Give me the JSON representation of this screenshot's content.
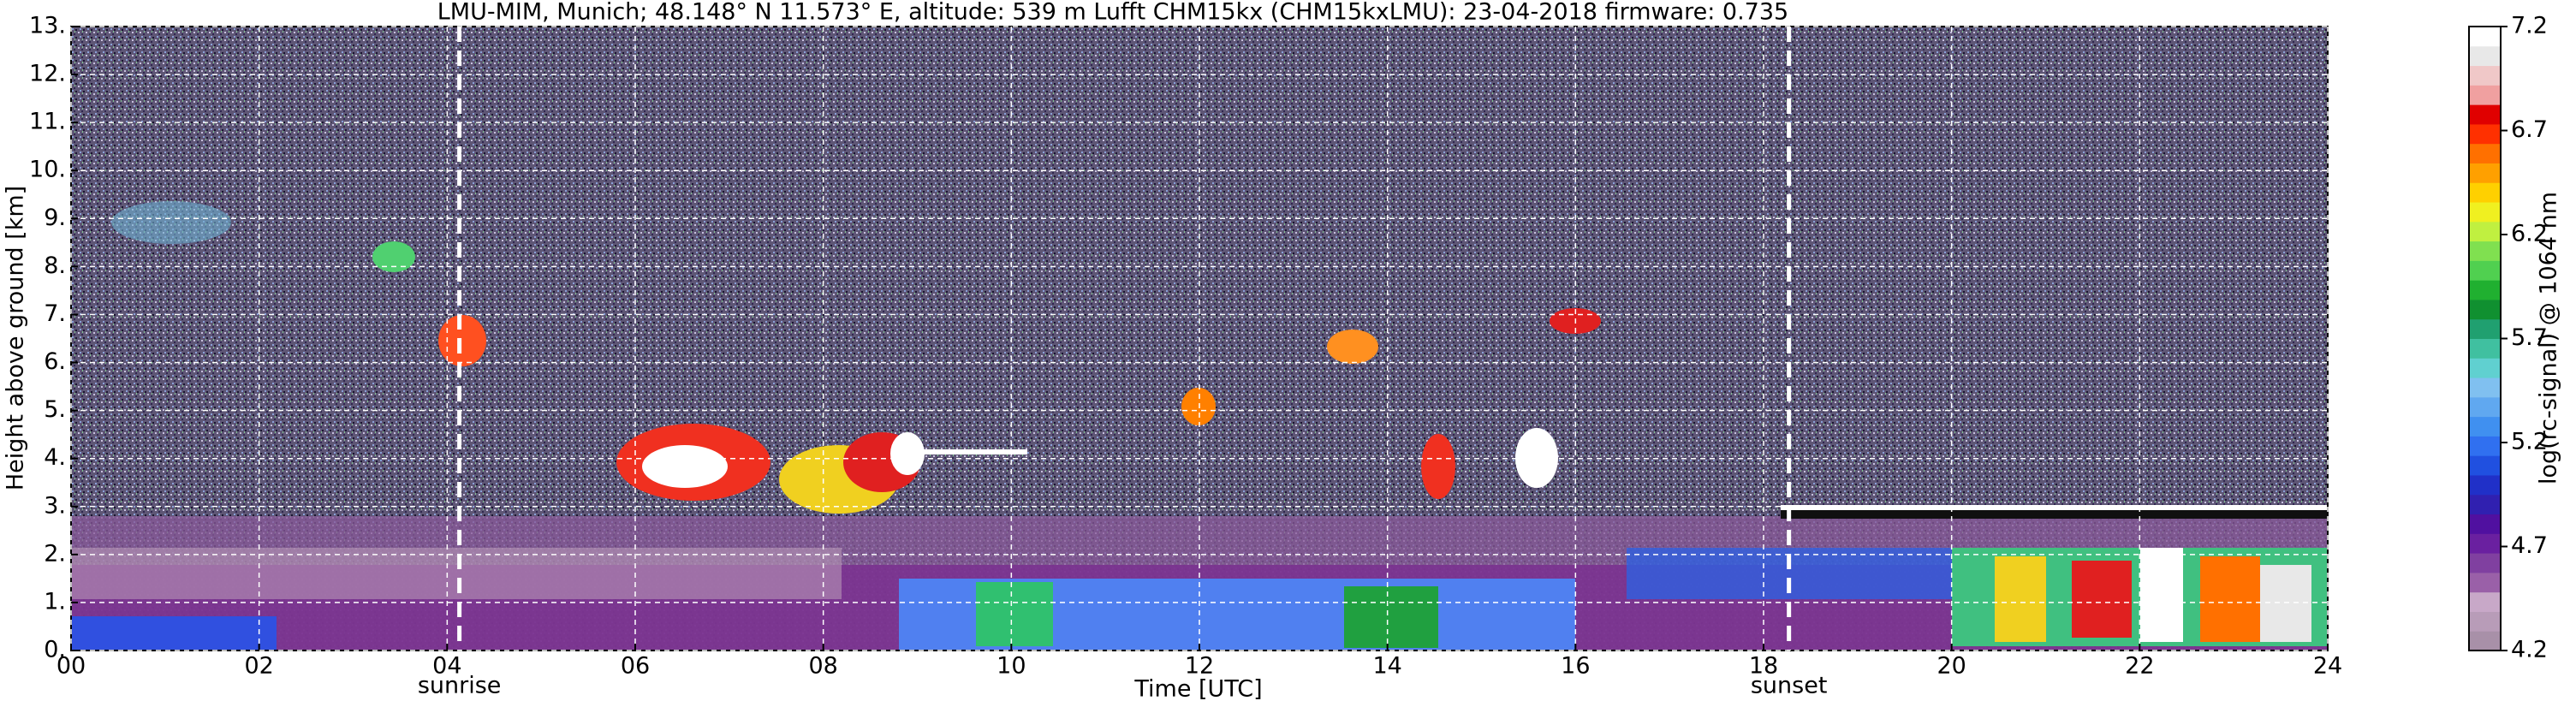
{
  "chart_data": {
    "type": "heatmap",
    "title": "LMU-MIM, Munich; 48.148° N 11.573° E, altitude: 539 m    Lufft CHM15kx (CHM15kxLMU): 23-04-2018    firmware: 0.735",
    "xlabel": "Time [UTC]",
    "ylabel": "Height above ground [km]",
    "xlim": [
      0,
      24
    ],
    "xticks": [
      {
        "value": 0,
        "label": "00"
      },
      {
        "value": 2,
        "label": "02"
      },
      {
        "value": 4,
        "label": "04"
      },
      {
        "value": 6,
        "label": "06"
      },
      {
        "value": 8,
        "label": "08"
      },
      10,
      12,
      14,
      16,
      18,
      20,
      22,
      24
    ],
    "ylim": [
      0,
      13
    ],
    "yticks": [
      {
        "value": 0,
        "label": "0."
      },
      {
        "value": 1,
        "label": "1."
      },
      {
        "value": 2,
        "label": "2."
      },
      {
        "value": 3,
        "label": "3."
      },
      {
        "value": 4,
        "label": "4."
      },
      {
        "value": 5,
        "label": "5."
      },
      {
        "value": 6,
        "label": "6."
      },
      {
        "value": 7,
        "label": "7."
      },
      {
        "value": 8,
        "label": "8."
      },
      {
        "value": 9,
        "label": "9."
      },
      {
        "value": 10,
        "label": "10."
      },
      {
        "value": 11,
        "label": "11."
      },
      {
        "value": 12,
        "label": "12."
      },
      {
        "value": 13,
        "label": "13."
      }
    ],
    "grid": true,
    "annotations": [
      {
        "text": "sunrise",
        "x": 4.13
      },
      {
        "text": "sunset",
        "x": 18.27
      }
    ],
    "colorbar": {
      "label": "log(rc-signal) @ 1064 nm",
      "lim": [
        4.2,
        7.2
      ],
      "ticks": [
        4.2,
        4.7,
        5.2,
        5.7,
        6.2,
        6.7,
        7.2
      ],
      "colors": [
        "#a890a8",
        "#b89cb8",
        "#c8a8c8",
        "#9a60a8",
        "#8040a0",
        "#6a20a0",
        "#5010a0",
        "#3020b0",
        "#2030c8",
        "#2050e0",
        "#3070f0",
        "#4090f0",
        "#60a8f0",
        "#80c0f0",
        "#60d0d0",
        "#40c0a0",
        "#20a070",
        "#109030",
        "#20b030",
        "#50d050",
        "#80e050",
        "#c0f040",
        "#f0f020",
        "#ffd000",
        "#ffa000",
        "#ff7000",
        "#ff3000",
        "#e00000",
        "#f0a0a0",
        "#f0c8c8",
        "#e8e8e8",
        "#ffffff"
      ]
    }
  }
}
